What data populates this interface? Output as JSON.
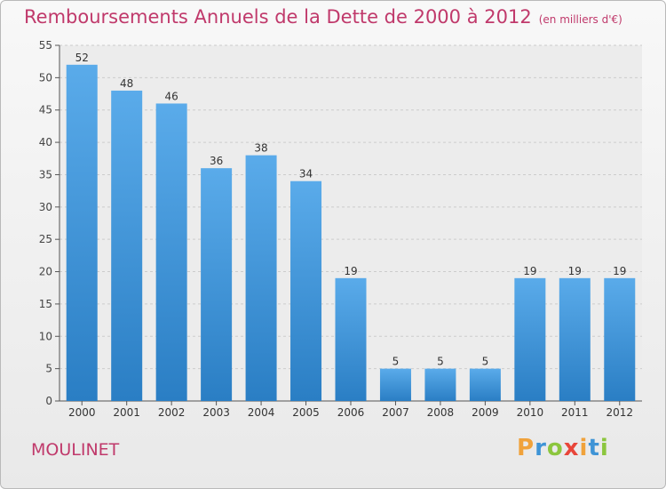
{
  "header": {
    "title": "Remboursements Annuels de la Dette de 2000 à 2012",
    "unit": "(en milliers d'€)"
  },
  "footer": {
    "commune": "MOULINET",
    "logo_text": "Proxiti"
  },
  "colors": {
    "title": "#c0396b",
    "bar_top": "#5aabea",
    "bar_bottom": "#2a7ec4",
    "grid": "#cccccc"
  },
  "chart_data": {
    "type": "bar",
    "title": "Remboursements Annuels de la Dette de 2000 à 2012",
    "xlabel": "",
    "ylabel": "",
    "categories": [
      "2000",
      "2001",
      "2002",
      "2003",
      "2004",
      "2005",
      "2006",
      "2007",
      "2008",
      "2009",
      "2010",
      "2011",
      "2012"
    ],
    "values": [
      52,
      48,
      46,
      36,
      38,
      34,
      19,
      5,
      5,
      5,
      19,
      19,
      19
    ],
    "ylim": [
      0,
      55
    ],
    "yticks": [
      0,
      5,
      10,
      15,
      20,
      25,
      30,
      35,
      40,
      45,
      50,
      55
    ],
    "grid": true,
    "data_labels": true
  }
}
